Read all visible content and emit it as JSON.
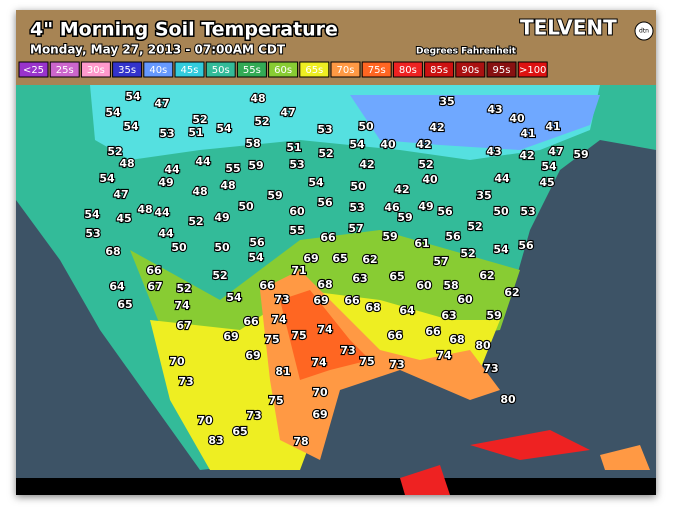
{
  "header": {
    "title": "4\" Morning Soil Temperature",
    "subtitle": "Monday, May 27, 2013 - 07:00AM CDT",
    "units": "Degrees Fahrenheit",
    "brand": "TELVENT",
    "brand_badge": "dtn"
  },
  "legend": [
    {
      "label": "<25",
      "color": "#9933cc"
    },
    {
      "label": "25s",
      "color": "#cc66cc"
    },
    {
      "label": "30s",
      "color": "#ff99cc"
    },
    {
      "label": "35s",
      "color": "#3333cc"
    },
    {
      "label": "40s",
      "color": "#6699ff"
    },
    {
      "label": "45s",
      "color": "#33ccdd"
    },
    {
      "label": "50s",
      "color": "#33bb99"
    },
    {
      "label": "55s",
      "color": "#33aa55"
    },
    {
      "label": "60s",
      "color": "#88cc33"
    },
    {
      "label": "65s",
      "color": "#eeee22"
    },
    {
      "label": "70s",
      "color": "#ff9944"
    },
    {
      "label": "75s",
      "color": "#ff6622"
    },
    {
      "label": "80s",
      "color": "#ee2222"
    },
    {
      "label": "85s",
      "color": "#cc1111"
    },
    {
      "label": "90s",
      "color": "#aa1111"
    },
    {
      "label": "95s",
      "color": "#881111"
    },
    {
      "label": ">100",
      "color": "#dd1111"
    }
  ],
  "stations": [
    54,
    54,
    47,
    54,
    52,
    53,
    51,
    54,
    48,
    47,
    52,
    53,
    50,
    35,
    43,
    40,
    42,
    41,
    41,
    52,
    48,
    44,
    44,
    58,
    51,
    52,
    54,
    40,
    42,
    43,
    42,
    47,
    59,
    55,
    59,
    53,
    42,
    52,
    54,
    49,
    48,
    54,
    50,
    42,
    40,
    44,
    45,
    54,
    48,
    47,
    59,
    50,
    56,
    48,
    44,
    52,
    49,
    60,
    53,
    46,
    49,
    56,
    35,
    50,
    53,
    59,
    54,
    45,
    53,
    44,
    50,
    57,
    55,
    66,
    56,
    50,
    59,
    61,
    56,
    52,
    54,
    56,
    68,
    54,
    69,
    65,
    62,
    57,
    52,
    71,
    66,
    52,
    63,
    65,
    62,
    64,
    67,
    52,
    66,
    68,
    60,
    58,
    62,
    65,
    54,
    73,
    69,
    66,
    68,
    64,
    60,
    74,
    63,
    59,
    67,
    66,
    74,
    74,
    75,
    66,
    66,
    68,
    69,
    75,
    73,
    75,
    73,
    74,
    80,
    70,
    69,
    74,
    81,
    73,
    70,
    73,
    80,
    75,
    69,
    73,
    70,
    83,
    65,
    78
  ]
}
